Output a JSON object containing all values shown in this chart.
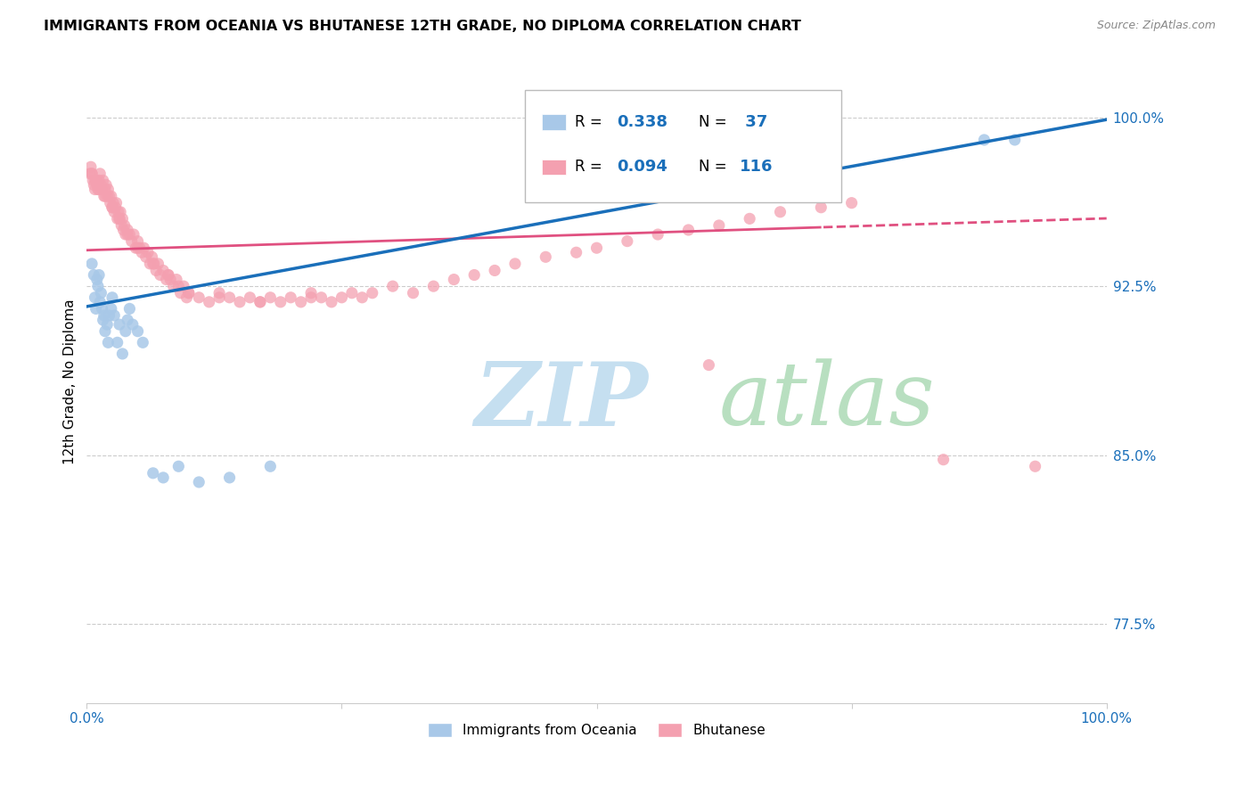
{
  "title": "IMMIGRANTS FROM OCEANIA VS BHUTANESE 12TH GRADE, NO DIPLOMA CORRELATION CHART",
  "source": "Source: ZipAtlas.com",
  "ylabel": "12th Grade, No Diploma",
  "ytick_labels": [
    "100.0%",
    "92.5%",
    "85.0%",
    "77.5%"
  ],
  "ytick_values": [
    1.0,
    0.925,
    0.85,
    0.775
  ],
  "color_oceania": "#a8c8e8",
  "color_bhutanese": "#f4a0b0",
  "color_line_oceania": "#1a6fba",
  "color_line_bhutanese": "#e05080",
  "color_blue_text": "#1a6fba",
  "watermark_zip": "ZIP",
  "watermark_atlas": "atlas",
  "watermark_color_zip": "#c8dff0",
  "watermark_color_atlas": "#d8ecd8",
  "oceania_x": [
    0.005,
    0.007,
    0.008,
    0.009,
    0.01,
    0.011,
    0.012,
    0.013,
    0.014,
    0.015,
    0.016,
    0.017,
    0.018,
    0.02,
    0.021,
    0.022,
    0.024,
    0.025,
    0.027,
    0.03,
    0.032,
    0.035,
    0.038,
    0.04,
    0.042,
    0.045,
    0.05,
    0.055,
    0.065,
    0.075,
    0.09,
    0.11,
    0.14,
    0.18,
    0.62,
    0.88,
    0.91
  ],
  "oceania_y": [
    0.935,
    0.93,
    0.92,
    0.915,
    0.928,
    0.925,
    0.93,
    0.918,
    0.922,
    0.915,
    0.91,
    0.912,
    0.905,
    0.908,
    0.9,
    0.912,
    0.915,
    0.92,
    0.912,
    0.9,
    0.908,
    0.895,
    0.905,
    0.91,
    0.915,
    0.908,
    0.905,
    0.9,
    0.842,
    0.84,
    0.845,
    0.838,
    0.84,
    0.845,
    0.99,
    0.99,
    0.99
  ],
  "bhutanese_x": [
    0.003,
    0.004,
    0.005,
    0.006,
    0.007,
    0.008,
    0.009,
    0.01,
    0.011,
    0.012,
    0.013,
    0.014,
    0.015,
    0.016,
    0.017,
    0.018,
    0.019,
    0.02,
    0.021,
    0.022,
    0.023,
    0.024,
    0.025,
    0.026,
    0.027,
    0.028,
    0.029,
    0.03,
    0.031,
    0.032,
    0.033,
    0.034,
    0.035,
    0.036,
    0.037,
    0.038,
    0.04,
    0.042,
    0.044,
    0.046,
    0.048,
    0.05,
    0.052,
    0.054,
    0.056,
    0.058,
    0.06,
    0.062,
    0.064,
    0.066,
    0.068,
    0.07,
    0.072,
    0.075,
    0.078,
    0.08,
    0.082,
    0.085,
    0.088,
    0.09,
    0.092,
    0.095,
    0.098,
    0.1,
    0.11,
    0.12,
    0.13,
    0.14,
    0.15,
    0.16,
    0.17,
    0.18,
    0.19,
    0.2,
    0.21,
    0.22,
    0.23,
    0.24,
    0.25,
    0.26,
    0.27,
    0.28,
    0.3,
    0.32,
    0.34,
    0.36,
    0.38,
    0.4,
    0.42,
    0.45,
    0.48,
    0.5,
    0.53,
    0.56,
    0.59,
    0.62,
    0.65,
    0.68,
    0.72,
    0.75,
    0.005,
    0.008,
    0.012,
    0.018,
    0.025,
    0.032,
    0.04,
    0.05,
    0.065,
    0.08,
    0.1,
    0.13,
    0.17,
    0.22,
    0.61,
    0.84,
    0.93
  ],
  "bhutanese_y": [
    0.975,
    0.978,
    0.975,
    0.972,
    0.97,
    0.968,
    0.972,
    0.97,
    0.968,
    0.972,
    0.975,
    0.97,
    0.968,
    0.972,
    0.965,
    0.968,
    0.97,
    0.965,
    0.968,
    0.965,
    0.962,
    0.965,
    0.96,
    0.962,
    0.958,
    0.96,
    0.962,
    0.955,
    0.958,
    0.955,
    0.958,
    0.952,
    0.955,
    0.95,
    0.952,
    0.948,
    0.95,
    0.948,
    0.945,
    0.948,
    0.942,
    0.945,
    0.942,
    0.94,
    0.942,
    0.938,
    0.94,
    0.935,
    0.938,
    0.935,
    0.932,
    0.935,
    0.93,
    0.932,
    0.928,
    0.93,
    0.928,
    0.925,
    0.928,
    0.925,
    0.922,
    0.925,
    0.92,
    0.922,
    0.92,
    0.918,
    0.922,
    0.92,
    0.918,
    0.92,
    0.918,
    0.92,
    0.918,
    0.92,
    0.918,
    0.922,
    0.92,
    0.918,
    0.92,
    0.922,
    0.92,
    0.922,
    0.925,
    0.922,
    0.925,
    0.928,
    0.93,
    0.932,
    0.935,
    0.938,
    0.94,
    0.942,
    0.945,
    0.948,
    0.95,
    0.952,
    0.955,
    0.958,
    0.96,
    0.962,
    0.975,
    0.972,
    0.968,
    0.965,
    0.96,
    0.955,
    0.948,
    0.942,
    0.935,
    0.93,
    0.922,
    0.92,
    0.918,
    0.92,
    0.89,
    0.848,
    0.845
  ]
}
